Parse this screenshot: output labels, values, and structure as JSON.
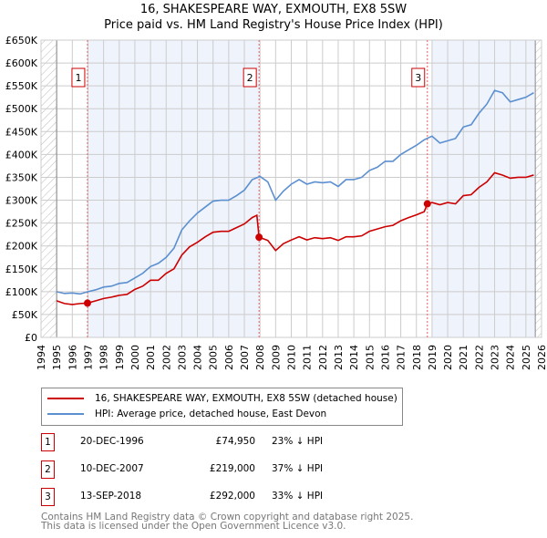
{
  "title_line1": "16, SHAKESPEARE WAY, EXMOUTH, EX8 5SW",
  "title_line2": "Price paid vs. HM Land Registry's House Price Index (HPI)",
  "colors": {
    "property": "#cc0000",
    "hpi": "#5b8fd0",
    "shade": "#eef3fc",
    "grid": "#cccccc",
    "marker_box": "#cc0000"
  },
  "chart_data": {
    "type": "line",
    "xlim": [
      1994,
      2026
    ],
    "ylim": [
      0,
      650000
    ],
    "x_ticks": [
      "1994",
      "1995",
      "1996",
      "1997",
      "1998",
      "1999",
      "2000",
      "2001",
      "2002",
      "2003",
      "2004",
      "2005",
      "2006",
      "2007",
      "2008",
      "2009",
      "2010",
      "2011",
      "2012",
      "2013",
      "2014",
      "2015",
      "2016",
      "2017",
      "2018",
      "2019",
      "2020",
      "2021",
      "2022",
      "2023",
      "2024",
      "2025",
      "2026"
    ],
    "y_ticks": [
      {
        "v": 0,
        "label": "£0"
      },
      {
        "v": 50000,
        "label": "£50K"
      },
      {
        "v": 100000,
        "label": "£100K"
      },
      {
        "v": 150000,
        "label": "£150K"
      },
      {
        "v": 200000,
        "label": "£200K"
      },
      {
        "v": 250000,
        "label": "£250K"
      },
      {
        "v": 300000,
        "label": "£300K"
      },
      {
        "v": 350000,
        "label": "£350K"
      },
      {
        "v": 400000,
        "label": "£400K"
      },
      {
        "v": 450000,
        "label": "£450K"
      },
      {
        "v": 500000,
        "label": "£500K"
      },
      {
        "v": 550000,
        "label": "£550K"
      },
      {
        "v": 600000,
        "label": "£600K"
      },
      {
        "v": 650000,
        "label": "£650K"
      }
    ],
    "grid": true,
    "shaded_ranges": [
      [
        1996.97,
        2007.94
      ],
      [
        2019.0,
        2025.6
      ]
    ],
    "hatched_ranges": [
      [
        1994,
        1995
      ],
      [
        2025.6,
        2026
      ]
    ],
    "sales": [
      {
        "label": "1",
        "x": 1996.97,
        "y": 74950
      },
      {
        "label": "2",
        "x": 2007.94,
        "y": 219000
      },
      {
        "label": "3",
        "x": 2018.7,
        "y": 292000
      }
    ],
    "series": [
      {
        "name": "16, SHAKESPEARE WAY, EXMOUTH, EX8 5SW (detached house)",
        "color": "#cc0000",
        "x": [
          1995,
          1995.5,
          1996,
          1996.5,
          1996.97,
          1997.5,
          1998,
          1998.5,
          1999,
          1999.5,
          2000,
          2000.5,
          2001,
          2001.5,
          2002,
          2002.5,
          2003,
          2003.5,
          2004,
          2004.5,
          2005,
          2005.5,
          2006,
          2006.5,
          2007,
          2007.5,
          2007.8,
          2007.94,
          2008.5,
          2009,
          2009.5,
          2010,
          2010.5,
          2011,
          2011.5,
          2012,
          2012.5,
          2013,
          2013.5,
          2014,
          2014.5,
          2015,
          2015.5,
          2016,
          2016.5,
          2017,
          2017.5,
          2018,
          2018.5,
          2018.7,
          2019,
          2019.5,
          2020,
          2020.5,
          2021,
          2021.5,
          2022,
          2022.5,
          2023,
          2023.5,
          2024,
          2024.5,
          2025,
          2025.5
        ],
        "values": [
          80000,
          74000,
          72000,
          74000,
          74950,
          80000,
          85000,
          88000,
          92000,
          94000,
          105000,
          112000,
          125000,
          125000,
          140000,
          150000,
          180000,
          198000,
          208000,
          220000,
          230000,
          232000,
          232000,
          240000,
          248000,
          262000,
          267000,
          219000,
          212000,
          190000,
          205000,
          213000,
          220000,
          213000,
          218000,
          216000,
          218000,
          212000,
          220000,
          220000,
          222000,
          232000,
          237000,
          242000,
          245000,
          255000,
          262000,
          268000,
          275000,
          292000,
          295000,
          290000,
          295000,
          292000,
          310000,
          312000,
          328000,
          340000,
          360000,
          355000,
          348000,
          350000,
          350000,
          355000
        ]
      },
      {
        "name": "HPI: Average price, detached house, East Devon",
        "color": "#5b8fd0",
        "x": [
          1995,
          1995.5,
          1996,
          1996.5,
          1997,
          1997.5,
          1998,
          1998.5,
          1999,
          1999.5,
          2000,
          2000.5,
          2001,
          2001.5,
          2002,
          2002.5,
          2003,
          2003.5,
          2004,
          2004.5,
          2005,
          2005.5,
          2006,
          2006.5,
          2007,
          2007.5,
          2008,
          2008.5,
          2009,
          2009.5,
          2010,
          2010.5,
          2011,
          2011.5,
          2012,
          2012.5,
          2013,
          2013.5,
          2014,
          2014.5,
          2015,
          2015.5,
          2016,
          2016.5,
          2017,
          2017.5,
          2018,
          2018.5,
          2019,
          2019.5,
          2020,
          2020.5,
          2021,
          2021.5,
          2022,
          2022.5,
          2023,
          2023.5,
          2024,
          2024.5,
          2025,
          2025.5
        ],
        "values": [
          100000,
          96000,
          97000,
          95000,
          100000,
          104000,
          110000,
          112000,
          118000,
          120000,
          130000,
          140000,
          155000,
          162000,
          175000,
          195000,
          235000,
          255000,
          272000,
          285000,
          298000,
          300000,
          300000,
          310000,
          322000,
          345000,
          352000,
          340000,
          300000,
          320000,
          335000,
          345000,
          335000,
          340000,
          338000,
          340000,
          330000,
          345000,
          345000,
          350000,
          365000,
          372000,
          385000,
          385000,
          400000,
          410000,
          420000,
          432000,
          440000,
          425000,
          430000,
          435000,
          460000,
          465000,
          490000,
          510000,
          540000,
          535000,
          515000,
          520000,
          525000,
          535000
        ]
      }
    ]
  },
  "legend": {
    "property": "16, SHAKESPEARE WAY, EXMOUTH, EX8 5SW (detached house)",
    "hpi": "HPI: Average price, detached house, East Devon"
  },
  "transactions": [
    {
      "num": "1",
      "date": "20-DEC-1996",
      "price": "£74,950",
      "diff": "23% ↓ HPI"
    },
    {
      "num": "2",
      "date": "10-DEC-2007",
      "price": "£219,000",
      "diff": "37% ↓ HPI"
    },
    {
      "num": "3",
      "date": "13-SEP-2018",
      "price": "£292,000",
      "diff": "33% ↓ HPI"
    }
  ],
  "footer": {
    "line1": "Contains HM Land Registry data © Crown copyright and database right 2025.",
    "line2": "This data is licensed under the Open Government Licence v3.0."
  }
}
